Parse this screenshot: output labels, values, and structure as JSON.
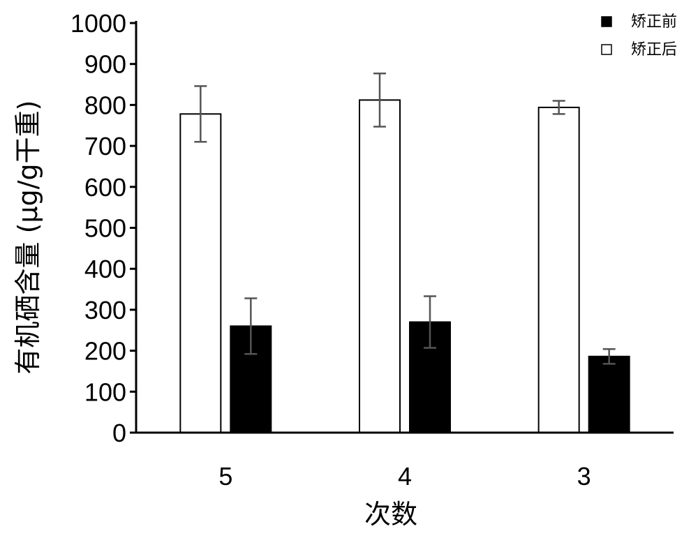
{
  "chart_data": {
    "type": "bar",
    "categories": [
      "5",
      "4",
      "3"
    ],
    "series": [
      {
        "name": "矫正后",
        "values": [
          778,
          812,
          794
        ],
        "errors": [
          68,
          65,
          16
        ],
        "fill": "#ffffff",
        "stroke": "#000000"
      },
      {
        "name": "矫正前",
        "values": [
          260,
          270,
          186
        ],
        "errors": [
          68,
          63,
          18
        ],
        "fill": "#000000",
        "stroke": "#000000"
      }
    ],
    "legend_order": [
      "矫正前",
      "矫正后"
    ],
    "xlabel": "次数",
    "ylabel": "有机硒含量 (μg/g干重)",
    "ylim": [
      0,
      1000
    ],
    "yticks": [
      0,
      100,
      200,
      300,
      400,
      500,
      600,
      700,
      800,
      900,
      1000
    ],
    "grid": false,
    "legend_position": "top-right",
    "error_bar_color": "#555555"
  }
}
